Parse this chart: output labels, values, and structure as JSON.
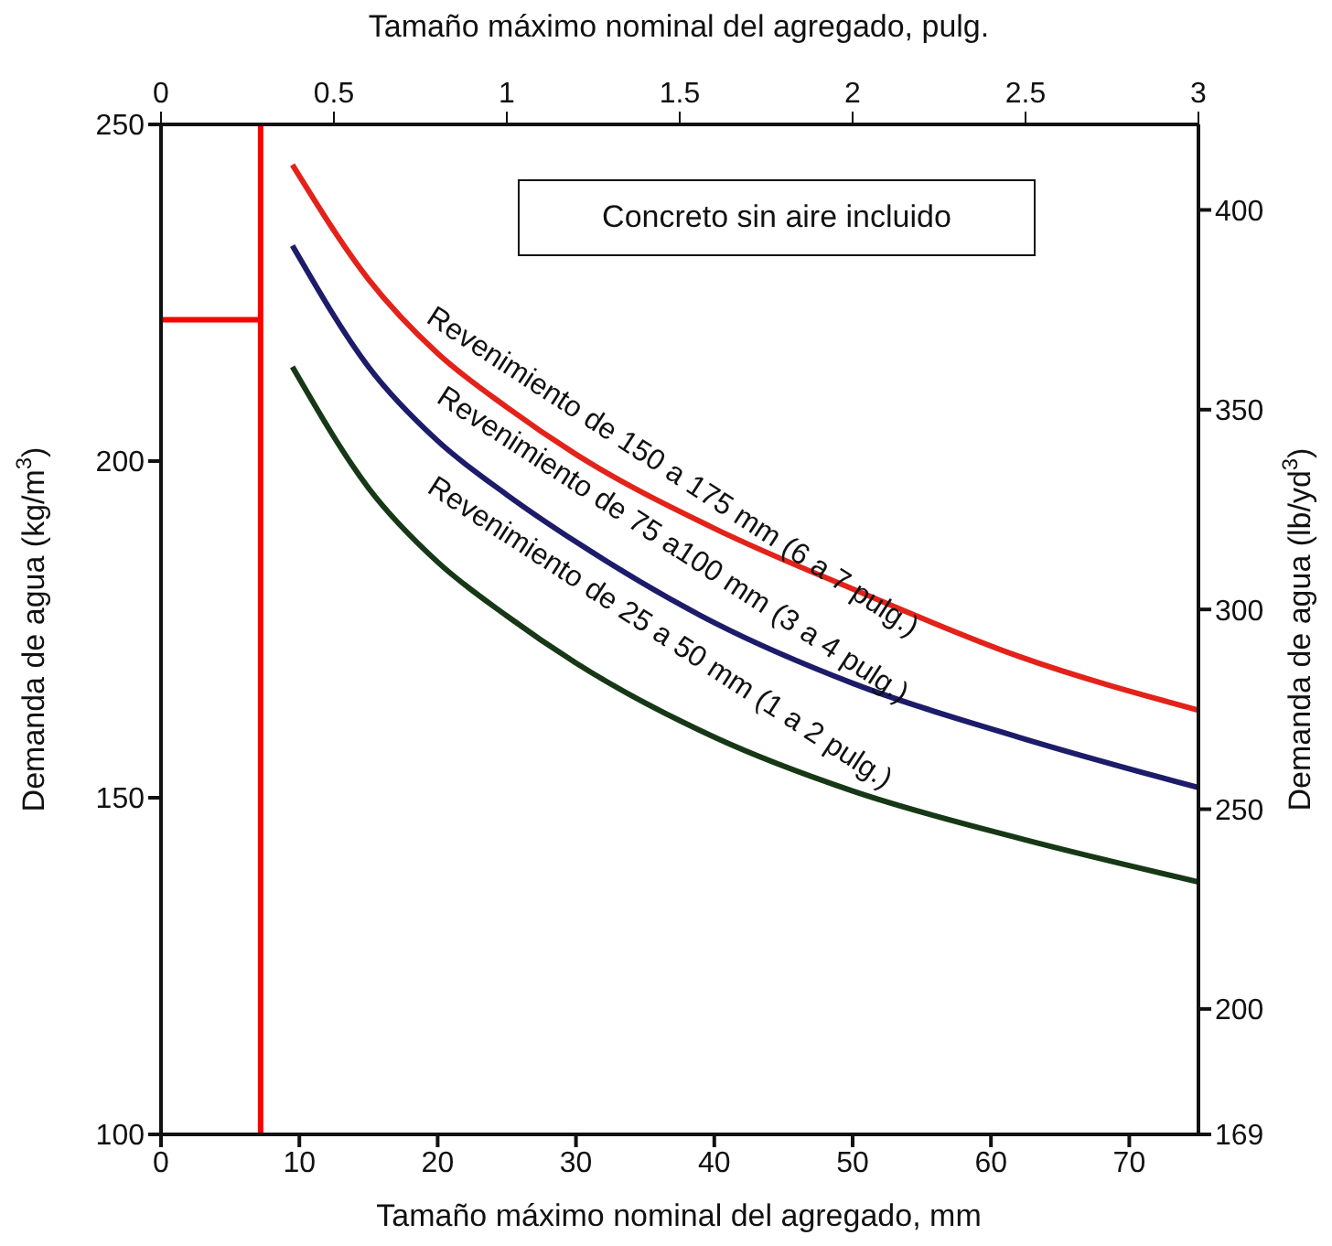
{
  "chart_data": {
    "type": "line",
    "xlabel": "Tamaño máximo nominal del agregado, mm",
    "x2label": "Tamaño máximo nominal del agregado, pulg.",
    "ylabel": "Demanda de agua (kg/m$^{3}$)",
    "y2label": "Demanda de agua (lb/yd$^{3}$)",
    "annotations": [
      "Concreto sin aire incluido"
    ],
    "x": [
      9.5,
      15,
      20,
      25,
      30,
      40,
      50,
      62,
      75
    ],
    "series": [
      {
        "name": "Revenimiento de 150 a 175 mm (6 a 7 pulg.)",
        "color": "#e3221a",
        "values": [
          244,
          227,
          216,
          208,
          201,
          190,
          181,
          171,
          163
        ]
      },
      {
        "name": "Revenimiento de 75 a100 mm (3 a 4 pulg.)",
        "color": "#1c1c6a",
        "values": [
          232,
          214,
          203,
          195,
          188,
          176,
          167,
          159,
          151.5
        ]
      },
      {
        "name": "Revenimiento de 25 a 50 mm (1 a 2 pulg.)",
        "color": "#163816",
        "values": [
          214,
          196,
          185,
          177,
          170,
          159,
          151,
          144,
          137.5
        ]
      }
    ],
    "xlim": [
      0,
      75
    ],
    "xticks": [
      0,
      10,
      20,
      30,
      40,
      50,
      60,
      70
    ],
    "x2lim": [
      0,
      3
    ],
    "x2ticks": [
      0,
      0.5,
      1,
      1.5,
      2,
      2.5,
      3
    ],
    "ylim": [
      100,
      250
    ],
    "yticks": [
      100,
      150,
      200,
      250
    ],
    "y2lim": [
      168.6,
      421.4
    ],
    "y2ticks": [
      {
        "value": 168.6,
        "label": "169"
      },
      200,
      250,
      300,
      350,
      400
    ],
    "ref_lines": [
      {
        "axis": "x",
        "value": 7.2,
        "color": "#ff0000"
      },
      {
        "axis": "y",
        "value": 221,
        "color": "#ff0000"
      }
    ],
    "grid": false,
    "legend": false,
    "marker": "none",
    "line_style": "solid"
  }
}
